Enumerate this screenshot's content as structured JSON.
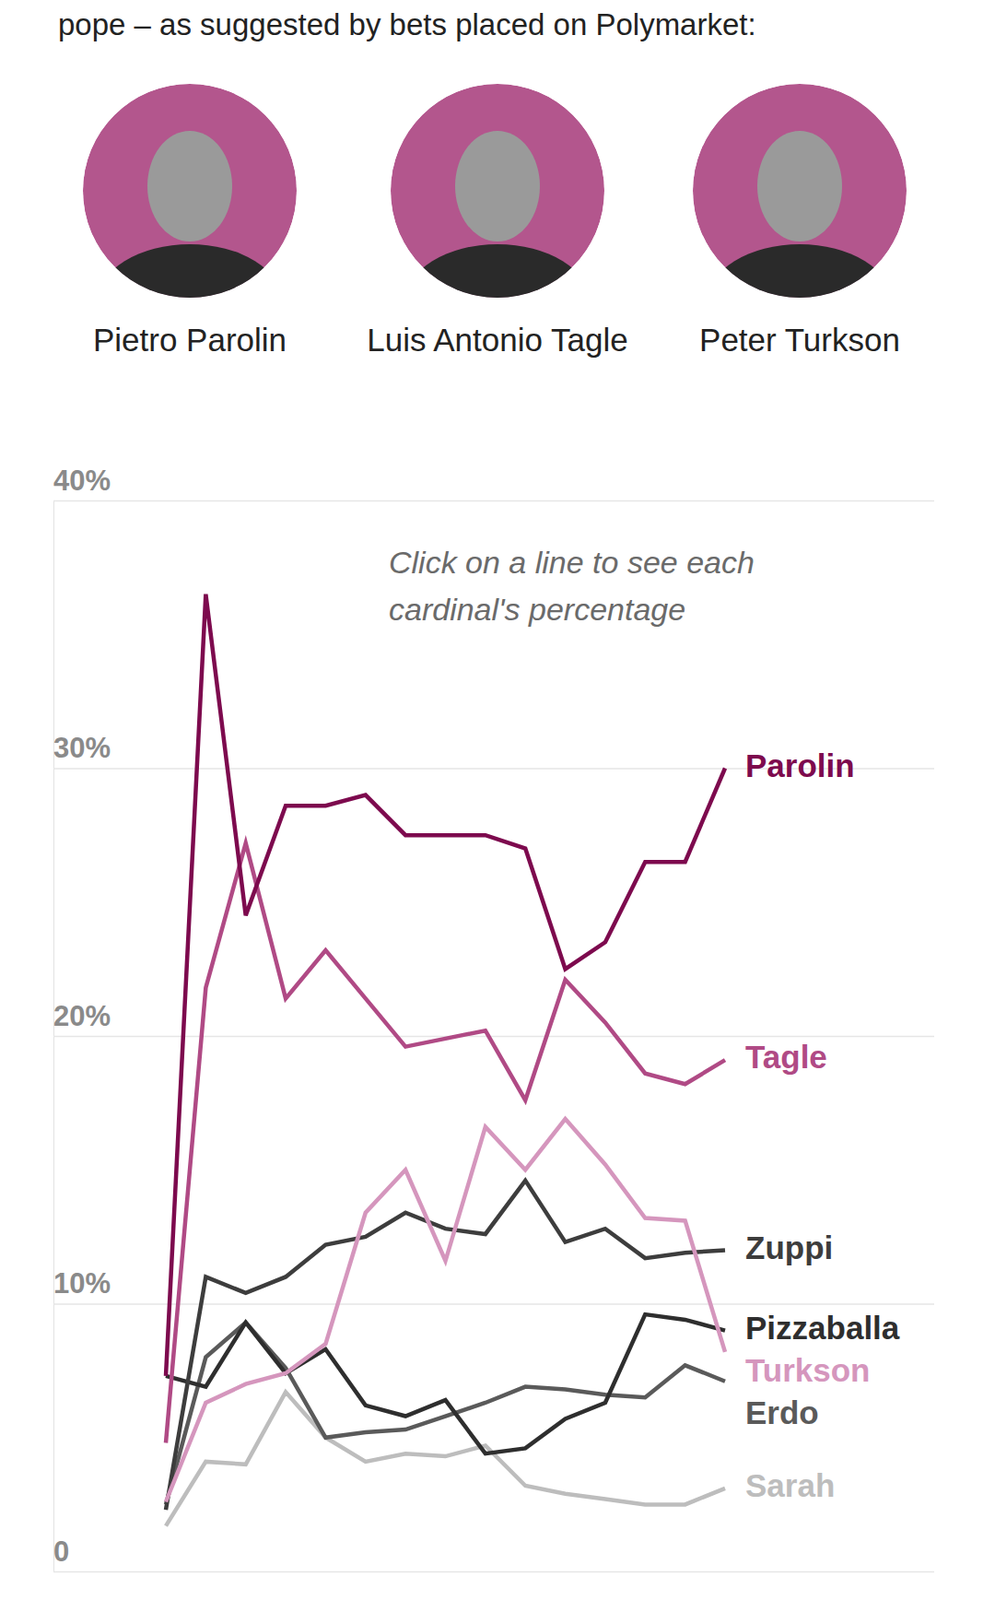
{
  "chart_data": {
    "type": "line",
    "title": "pope – as suggested by bets placed on Polymarket:",
    "portraits": [
      "Pietro Parolin",
      "Luis Antonio Tagle",
      "Peter Turkson"
    ],
    "annotation": "Click on a line to see each cardinal's percentage",
    "categories": [
      null,
      null,
      null,
      null,
      null,
      null,
      null,
      null,
      null,
      null,
      null,
      null,
      null,
      null,
      null
    ],
    "series": [
      {
        "name": "Parolin",
        "color": "#7d0a4e",
        "values": [
          7.3,
          36.5,
          24.5,
          28.6,
          28.6,
          29.0,
          27.5,
          27.5,
          27.5,
          27.0,
          22.5,
          23.5,
          26.5,
          26.5,
          30.0
        ]
      },
      {
        "name": "Tagle",
        "color": "#b04a85",
        "values": [
          4.8,
          21.8,
          27.2,
          21.4,
          23.2,
          21.4,
          19.6,
          19.9,
          20.2,
          17.6,
          22.1,
          20.5,
          18.6,
          18.2,
          19.1
        ]
      },
      {
        "name": "Turkson",
        "color": "#d596bd",
        "values": [
          2.6,
          6.3,
          7.0,
          7.4,
          8.5,
          13.4,
          15.0,
          11.6,
          16.6,
          15.0,
          16.9,
          15.2,
          13.2,
          13.1,
          8.2
        ]
      },
      {
        "name": "Zuppi",
        "color": "#3d3d3d",
        "values": [
          2.3,
          11.0,
          10.4,
          11.0,
          12.2,
          12.5,
          13.4,
          12.8,
          12.6,
          14.6,
          12.3,
          12.8,
          11.7,
          11.9,
          12.0
        ]
      },
      {
        "name": "Pizzaballa",
        "color": "#2e2e2e",
        "values": [
          7.3,
          6.9,
          9.3,
          7.4,
          8.3,
          6.2,
          5.8,
          6.4,
          4.4,
          4.6,
          5.7,
          6.3,
          9.6,
          9.4,
          9.0
        ]
      },
      {
        "name": "Erdo",
        "color": "#5a5a5a",
        "values": [
          2.5,
          8.0,
          9.3,
          7.6,
          5.0,
          5.2,
          5.3,
          5.8,
          6.3,
          6.9,
          6.8,
          6.6,
          6.5,
          7.7,
          7.1
        ]
      },
      {
        "name": "Sarah",
        "color": "#bdbdbd",
        "values": [
          1.7,
          4.1,
          4.0,
          6.7,
          5.0,
          4.1,
          4.4,
          4.3,
          4.7,
          3.2,
          2.9,
          2.7,
          2.5,
          2.5,
          3.1
        ]
      }
    ],
    "ylim": [
      0,
      40
    ],
    "yticks": [
      0,
      {
        "value": 10,
        "label": "10%"
      },
      {
        "value": 20,
        "label": "20%"
      },
      {
        "value": 30,
        "label": "30%"
      },
      {
        "value": 40,
        "label": "40%"
      }
    ],
    "grid": true,
    "tick_labels": "y",
    "legend": "right"
  }
}
